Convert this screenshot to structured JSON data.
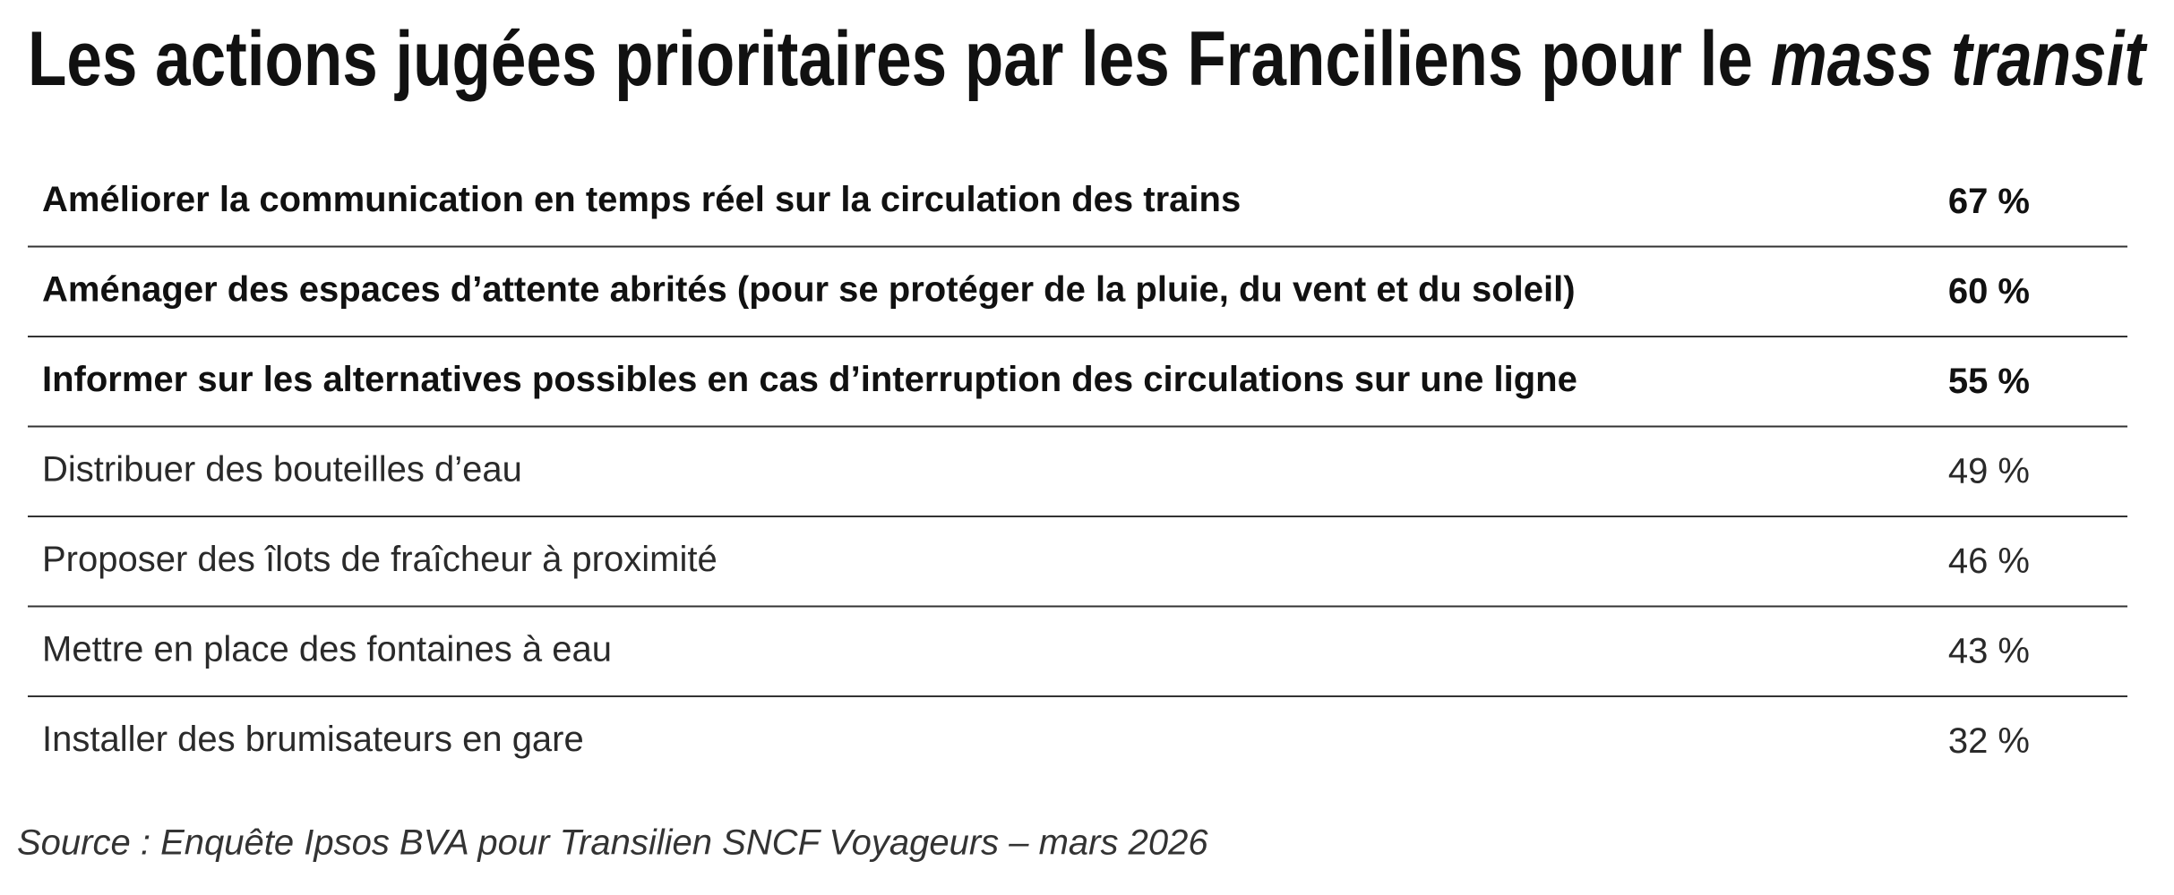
{
  "header": {
    "title": "Les actions jugées prioritaires par les Franciliens pour le",
    "title_emphasis": "mass transit"
  },
  "table": {
    "rows": [
      [
        "Améliorer la communication en temps réel sur la circulation des trains",
        "67 %"
      ],
      [
        "Aménager des espaces d’attente abrités (pour se protéger de la pluie, du vent et du soleil)",
        "60 %"
      ],
      [
        "Informer sur les alternatives possibles en cas d’interruption des circulations sur une ligne",
        "55 %"
      ],
      [
        "Distribuer des bouteilles d’eau",
        "49 %"
      ],
      [
        "Proposer des îlots de fraîcheur à proximité",
        "46 %"
      ],
      [
        "Mettre en place des fontaines à eau",
        "43 %"
      ],
      [
        "Installer des brumisateurs en gare",
        "32 %"
      ]
    ]
  },
  "footer": {
    "source": "Source : Enquête Ipsos BVA pour Transilien SNCF Voyageurs – mars 2026"
  }
}
